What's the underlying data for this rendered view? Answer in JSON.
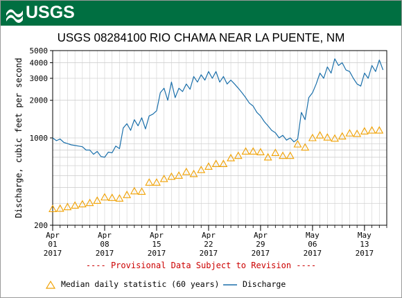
{
  "header": {
    "agency": "USGS"
  },
  "chart_data": {
    "type": "line",
    "title": "USGS 08284100 RIO CHAMA NEAR LA PUENTE, NM",
    "ylabel": "Discharge, cubic feet per second",
    "xlabel": "",
    "y_scale": "log",
    "ylim": [
      200,
      5000
    ],
    "y_ticks": [
      200,
      1000,
      2000,
      3000,
      4000,
      5000
    ],
    "xlim": [
      "2017-04-01",
      "2017-05-16"
    ],
    "x_ticks": [
      {
        "date": "2017-04-01",
        "label": [
          "Apr",
          "01",
          "2017"
        ]
      },
      {
        "date": "2017-04-08",
        "label": [
          "Apr",
          "08",
          "2017"
        ]
      },
      {
        "date": "2017-04-15",
        "label": [
          "Apr",
          "15",
          "2017"
        ]
      },
      {
        "date": "2017-04-22",
        "label": [
          "Apr",
          "22",
          "2017"
        ]
      },
      {
        "date": "2017-04-29",
        "label": [
          "Apr",
          "29",
          "2017"
        ]
      },
      {
        "date": "2017-05-06",
        "label": [
          "May",
          "06",
          "2017"
        ]
      },
      {
        "date": "2017-05-13",
        "label": [
          "May",
          "13",
          "2017"
        ]
      }
    ],
    "grid": true,
    "legend_position": "bottom",
    "annotation": "---- Provisional Data Subject to Revision ----",
    "series": [
      {
        "name": "Median daily statistic (60 years)",
        "kind": "markers",
        "marker": "triangle",
        "color": "#f0a000",
        "points": [
          [
            "2017-04-01",
            270
          ],
          [
            "2017-04-02",
            272
          ],
          [
            "2017-04-03",
            280
          ],
          [
            "2017-04-04",
            288
          ],
          [
            "2017-04-05",
            295
          ],
          [
            "2017-04-06",
            302
          ],
          [
            "2017-04-07",
            315
          ],
          [
            "2017-04-08",
            335
          ],
          [
            "2017-04-09",
            332
          ],
          [
            "2017-04-10",
            328
          ],
          [
            "2017-04-11",
            350
          ],
          [
            "2017-04-12",
            375
          ],
          [
            "2017-04-13",
            372
          ],
          [
            "2017-04-14",
            440
          ],
          [
            "2017-04-15",
            440
          ],
          [
            "2017-04-16",
            470
          ],
          [
            "2017-04-17",
            490
          ],
          [
            "2017-04-18",
            500
          ],
          [
            "2017-04-19",
            535
          ],
          [
            "2017-04-20",
            515
          ],
          [
            "2017-04-21",
            555
          ],
          [
            "2017-04-22",
            590
          ],
          [
            "2017-04-23",
            620
          ],
          [
            "2017-04-24",
            620
          ],
          [
            "2017-04-25",
            690
          ],
          [
            "2017-04-26",
            720
          ],
          [
            "2017-04-27",
            780
          ],
          [
            "2017-04-28",
            780
          ],
          [
            "2017-04-29",
            770
          ],
          [
            "2017-04-30",
            700
          ],
          [
            "2017-05-01",
            760
          ],
          [
            "2017-05-02",
            720
          ],
          [
            "2017-05-03",
            720
          ],
          [
            "2017-05-04",
            890
          ],
          [
            "2017-05-05",
            840
          ],
          [
            "2017-05-06",
            1000
          ],
          [
            "2017-05-07",
            1050
          ],
          [
            "2017-05-08",
            1010
          ],
          [
            "2017-05-09",
            990
          ],
          [
            "2017-05-10",
            1030
          ],
          [
            "2017-05-11",
            1090
          ],
          [
            "2017-05-12",
            1080
          ],
          [
            "2017-05-13",
            1130
          ],
          [
            "2017-05-14",
            1150
          ],
          [
            "2017-05-15",
            1150
          ]
        ]
      },
      {
        "name": "Discharge",
        "kind": "line",
        "color": "#1a6faa",
        "points": [
          [
            "2017-04-01",
            1000
          ],
          [
            "2017-04-01T12",
            950
          ],
          [
            "2017-04-02",
            980
          ],
          [
            "2017-04-02T12",
            920
          ],
          [
            "2017-04-03",
            900
          ],
          [
            "2017-04-03T12",
            880
          ],
          [
            "2017-04-04",
            870
          ],
          [
            "2017-04-04T12",
            860
          ],
          [
            "2017-04-05",
            850
          ],
          [
            "2017-04-05T12",
            800
          ],
          [
            "2017-04-06",
            800
          ],
          [
            "2017-04-06T12",
            740
          ],
          [
            "2017-04-07",
            780
          ],
          [
            "2017-04-07T12",
            710
          ],
          [
            "2017-04-08",
            700
          ],
          [
            "2017-04-08T12",
            770
          ],
          [
            "2017-04-09",
            760
          ],
          [
            "2017-04-09T12",
            860
          ],
          [
            "2017-04-10",
            820
          ],
          [
            "2017-04-10T12",
            1200
          ],
          [
            "2017-04-11",
            1300
          ],
          [
            "2017-04-11T12",
            1150
          ],
          [
            "2017-04-12",
            1400
          ],
          [
            "2017-04-12T12",
            1250
          ],
          [
            "2017-04-13",
            1450
          ],
          [
            "2017-04-13T12",
            1180
          ],
          [
            "2017-04-14",
            1500
          ],
          [
            "2017-04-14T12",
            1550
          ],
          [
            "2017-04-15",
            1650
          ],
          [
            "2017-04-15T12",
            2300
          ],
          [
            "2017-04-16",
            2500
          ],
          [
            "2017-04-16T12",
            2000
          ],
          [
            "2017-04-17",
            2800
          ],
          [
            "2017-04-17T12",
            2100
          ],
          [
            "2017-04-18",
            2500
          ],
          [
            "2017-04-18T12",
            2350
          ],
          [
            "2017-04-19",
            2700
          ],
          [
            "2017-04-19T12",
            2450
          ],
          [
            "2017-04-20",
            3100
          ],
          [
            "2017-04-20T12",
            2800
          ],
          [
            "2017-04-21",
            3200
          ],
          [
            "2017-04-21T12",
            2900
          ],
          [
            "2017-04-22",
            3400
          ],
          [
            "2017-04-22T12",
            3000
          ],
          [
            "2017-04-23",
            3400
          ],
          [
            "2017-04-23T12",
            2800
          ],
          [
            "2017-04-24",
            3100
          ],
          [
            "2017-04-24T12",
            2700
          ],
          [
            "2017-04-25",
            2900
          ],
          [
            "2017-04-25T12",
            2700
          ],
          [
            "2017-04-26",
            2500
          ],
          [
            "2017-04-26T12",
            2300
          ],
          [
            "2017-04-27",
            2100
          ],
          [
            "2017-04-27T12",
            1900
          ],
          [
            "2017-04-28",
            1800
          ],
          [
            "2017-04-28T12",
            1600
          ],
          [
            "2017-04-29",
            1500
          ],
          [
            "2017-04-29T12",
            1350
          ],
          [
            "2017-04-30",
            1250
          ],
          [
            "2017-04-30T12",
            1150
          ],
          [
            "2017-05-01",
            1100
          ],
          [
            "2017-05-01T12",
            1000
          ],
          [
            "2017-05-02",
            1050
          ],
          [
            "2017-05-02T12",
            960
          ],
          [
            "2017-05-03",
            1000
          ],
          [
            "2017-05-03T12",
            930
          ],
          [
            "2017-05-04",
            980
          ],
          [
            "2017-05-04T12",
            1600
          ],
          [
            "2017-05-05",
            1400
          ],
          [
            "2017-05-05T12",
            2100
          ],
          [
            "2017-05-06",
            2300
          ],
          [
            "2017-05-06T12",
            2700
          ],
          [
            "2017-05-07",
            3300
          ],
          [
            "2017-05-07T12",
            3000
          ],
          [
            "2017-05-08",
            3700
          ],
          [
            "2017-05-08T12",
            3300
          ],
          [
            "2017-05-09",
            4300
          ],
          [
            "2017-05-09T12",
            3800
          ],
          [
            "2017-05-10",
            4000
          ],
          [
            "2017-05-10T12",
            3500
          ],
          [
            "2017-05-11",
            3400
          ],
          [
            "2017-05-11T12",
            3000
          ],
          [
            "2017-05-12",
            2700
          ],
          [
            "2017-05-12T12",
            2600
          ],
          [
            "2017-05-13",
            3300
          ],
          [
            "2017-05-13T12",
            3000
          ],
          [
            "2017-05-14",
            3800
          ],
          [
            "2017-05-14T12",
            3400
          ],
          [
            "2017-05-15",
            4200
          ],
          [
            "2017-05-15T12",
            3500
          ]
        ]
      }
    ]
  }
}
